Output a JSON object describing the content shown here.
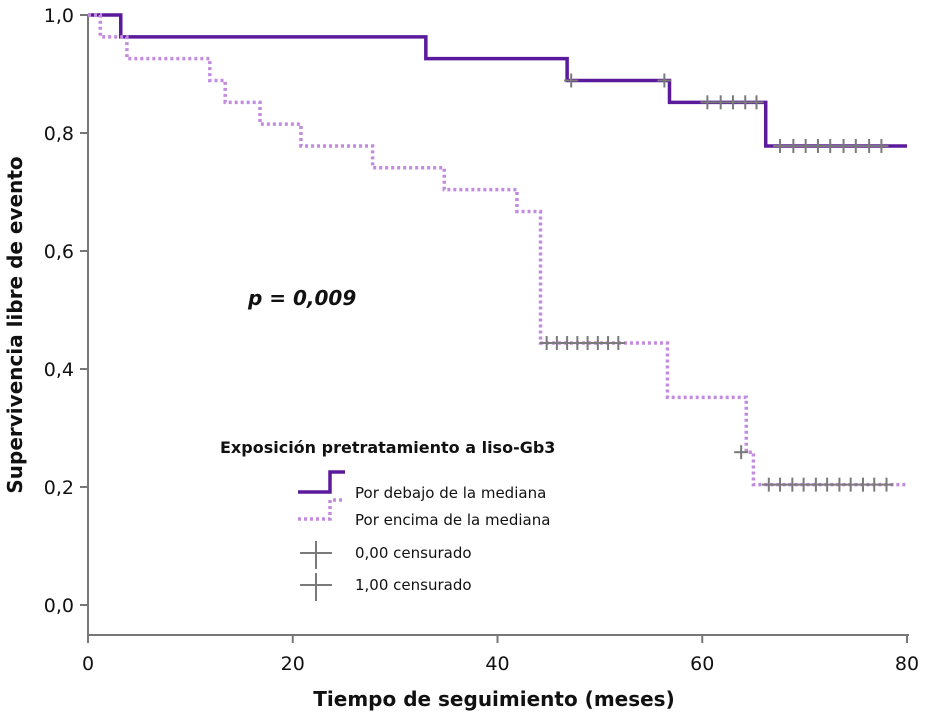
{
  "chart_data": {
    "type": "line",
    "subtype": "kaplan-meier",
    "xlabel": "Tiempo de seguimiento (meses)",
    "ylabel": "Supervivencia libre de evento",
    "xlim": [
      0,
      80
    ],
    "ylim": [
      0,
      1.0
    ],
    "x_ticks": [
      0,
      20,
      40,
      60,
      80
    ],
    "x_tick_labels": [
      "0",
      "20",
      "40",
      "60",
      "80"
    ],
    "y_ticks": [
      0,
      0.2,
      0.4,
      0.6,
      0.8,
      1.0
    ],
    "y_tick_labels": [
      "0,0",
      "0,2",
      "0,4",
      "0,6",
      "0,8",
      "1,0"
    ],
    "grid": false,
    "annotation": "p = 0,009",
    "legend": {
      "title": "Exposición pretratamiento a liso-Gb3",
      "entries": [
        {
          "label": "Por debajo de la mediana",
          "color": "#5b1a9c",
          "style": "solid"
        },
        {
          "label": "Por encima de la mediana",
          "color": "#c38be0",
          "style": "dotted"
        },
        {
          "label": "0,00 censurado",
          "color": "#7a7a7a",
          "style": "censor-mark"
        },
        {
          "label": "1,00 censurado",
          "color": "#7a7a7a",
          "style": "censor-mark"
        }
      ]
    },
    "series": [
      {
        "name": "Por debajo de la mediana",
        "color": "#5b1a9c",
        "style": "solid",
        "steps": [
          [
            0,
            1.0
          ],
          [
            3.2,
            0.963
          ],
          [
            33,
            0.926
          ],
          [
            46.8,
            0.889
          ],
          [
            56.8,
            0.852
          ],
          [
            66.2,
            0.778
          ],
          [
            80,
            0.778
          ]
        ],
        "censored": [
          [
            47.2,
            0.889
          ],
          [
            56.3,
            0.889
          ],
          [
            60.5,
            0.852
          ],
          [
            61.8,
            0.852
          ],
          [
            63.0,
            0.852
          ],
          [
            64.2,
            0.852
          ],
          [
            65.3,
            0.852
          ],
          [
            67.6,
            0.778
          ],
          [
            68.9,
            0.778
          ],
          [
            70.1,
            0.778
          ],
          [
            71.3,
            0.778
          ],
          [
            72.5,
            0.778
          ],
          [
            73.8,
            0.778
          ],
          [
            75.0,
            0.778
          ],
          [
            76.3,
            0.778
          ],
          [
            77.5,
            0.778
          ]
        ]
      },
      {
        "name": "Por encima de la mediana",
        "color": "#c38be0",
        "style": "dotted",
        "steps": [
          [
            0,
            1.0
          ],
          [
            1.2,
            0.963
          ],
          [
            3.8,
            0.926
          ],
          [
            11.9,
            0.889
          ],
          [
            13.4,
            0.852
          ],
          [
            16.8,
            0.815
          ],
          [
            20.8,
            0.778
          ],
          [
            27.8,
            0.741
          ],
          [
            34.8,
            0.704
          ],
          [
            41.9,
            0.667
          ],
          [
            44.2,
            0.444
          ],
          [
            56.6,
            0.352
          ],
          [
            64.3,
            0.259
          ],
          [
            65.0,
            0.204
          ],
          [
            80,
            0.204
          ]
        ],
        "censored": [
          [
            44.8,
            0.444
          ],
          [
            45.8,
            0.444
          ],
          [
            46.8,
            0.444
          ],
          [
            47.8,
            0.444
          ],
          [
            48.8,
            0.444
          ],
          [
            49.8,
            0.444
          ],
          [
            50.8,
            0.444
          ],
          [
            51.8,
            0.444
          ],
          [
            63.8,
            0.259
          ],
          [
            66.5,
            0.204
          ],
          [
            67.6,
            0.204
          ],
          [
            68.8,
            0.204
          ],
          [
            69.9,
            0.204
          ],
          [
            71.1,
            0.204
          ],
          [
            72.2,
            0.204
          ],
          [
            73.4,
            0.204
          ],
          [
            74.5,
            0.204
          ],
          [
            75.7,
            0.204
          ],
          [
            76.8,
            0.204
          ],
          [
            78.0,
            0.204
          ]
        ]
      }
    ]
  }
}
